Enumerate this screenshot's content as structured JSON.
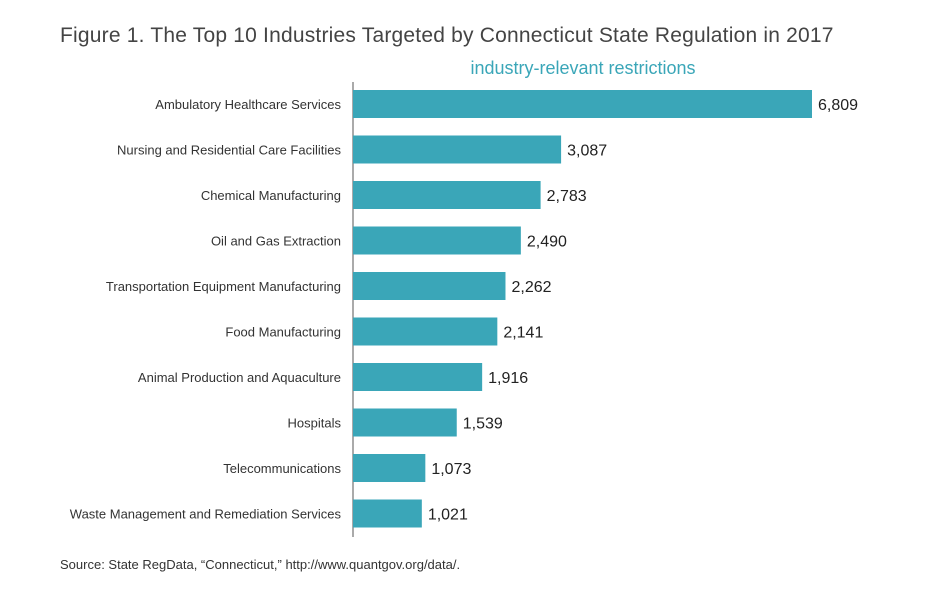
{
  "chart_data": {
    "type": "bar",
    "orientation": "horizontal",
    "title": "Figure 1. The Top 10 Industries Targeted by Connecticut State Regulation in 2017",
    "subtitle": "industry-relevant restrictions",
    "categories": [
      "Ambulatory Healthcare Services",
      "Nursing and Residential Care Facilities",
      "Chemical Manufacturing",
      "Oil and Gas Extraction",
      "Transportation Equipment Manufacturing",
      "Food Manufacturing",
      "Animal Production and Aquaculture",
      "Hospitals",
      "Telecommunications",
      "Waste Management and Remediation Services"
    ],
    "values": [
      6809,
      3087,
      2783,
      2490,
      2262,
      2141,
      1916,
      1539,
      1073,
      1021
    ],
    "value_labels": [
      "6,809",
      "3,087",
      "2,783",
      "2,490",
      "2,262",
      "2,141",
      "1,916",
      "1,539",
      "1,073",
      "1,021"
    ],
    "xlim": [
      0,
      6809
    ],
    "grid": false,
    "bar_color": "#3aa6b8",
    "axis_color": "#555555"
  },
  "source": "Source: State RegData, “Connecticut,” http://www.quantgov.org/data/."
}
